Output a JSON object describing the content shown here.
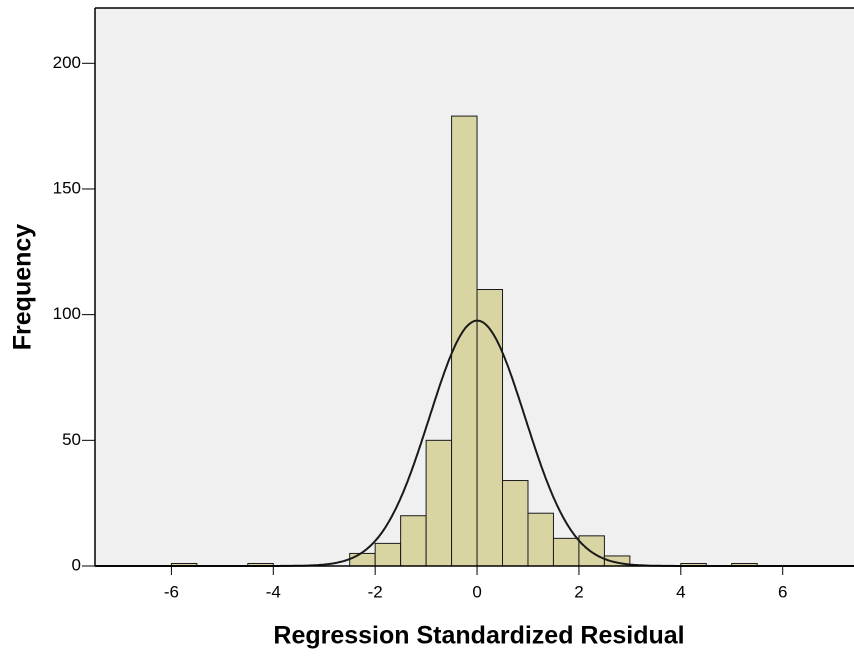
{
  "chart_data": {
    "type": "histogram",
    "x_label": "Regression Standardized Residual",
    "y_label": "Frequency",
    "bins": [
      -6,
      -5.5,
      -5,
      -4.5,
      -4,
      -3.5,
      -3,
      -2.5,
      -2,
      -1.5,
      -1,
      -0.5,
      0,
      0.5,
      1,
      1.5,
      2,
      2.5,
      3,
      3.5,
      4,
      4.5,
      5,
      5.5
    ],
    "values": [
      1,
      0,
      0,
      1,
      0,
      0,
      0,
      5,
      9,
      20,
      50,
      179,
      110,
      34,
      21,
      11,
      12,
      4,
      0,
      0,
      1,
      0,
      1
    ],
    "color": "#d9d5a3",
    "xlim": [
      -7.5,
      7.4
    ],
    "xticks": [
      -6,
      -4,
      -2,
      0,
      2,
      4,
      6
    ],
    "ylim": [
      0,
      222
    ],
    "yticks": [
      0,
      50,
      100,
      150,
      200
    ],
    "normal_curve": true
  }
}
